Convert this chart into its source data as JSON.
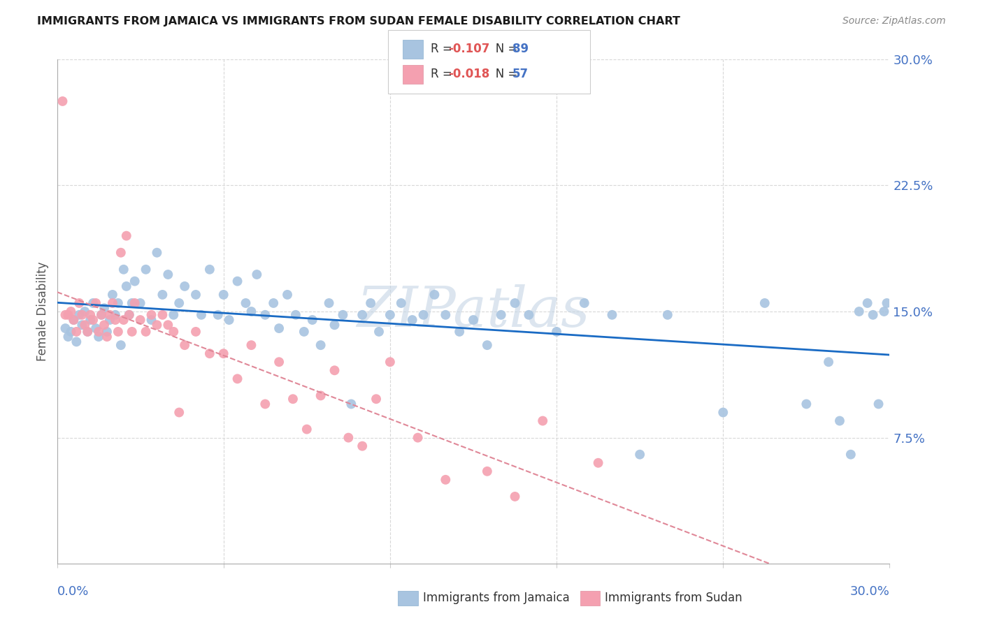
{
  "title": "IMMIGRANTS FROM JAMAICA VS IMMIGRANTS FROM SUDAN FEMALE DISABILITY CORRELATION CHART",
  "source": "Source: ZipAtlas.com",
  "ylabel": "Female Disability",
  "xlim": [
    0.0,
    0.3
  ],
  "ylim": [
    0.0,
    0.3
  ],
  "jamaica_color": "#a8c4e0",
  "sudan_color": "#f4a0b0",
  "jamaica_line_color": "#1a6bc4",
  "sudan_line_color": "#e08898",
  "legend_r_jamaica": "-0.107",
  "legend_n_jamaica": "89",
  "legend_r_sudan": "-0.018",
  "legend_n_sudan": "57",
  "jamaica_x": [
    0.003,
    0.004,
    0.005,
    0.006,
    0.007,
    0.008,
    0.009,
    0.01,
    0.011,
    0.012,
    0.013,
    0.014,
    0.015,
    0.016,
    0.017,
    0.018,
    0.019,
    0.02,
    0.021,
    0.022,
    0.023,
    0.024,
    0.025,
    0.026,
    0.027,
    0.028,
    0.03,
    0.032,
    0.034,
    0.036,
    0.038,
    0.04,
    0.042,
    0.044,
    0.046,
    0.05,
    0.052,
    0.055,
    0.058,
    0.06,
    0.062,
    0.065,
    0.068,
    0.07,
    0.072,
    0.075,
    0.078,
    0.08,
    0.083,
    0.086,
    0.089,
    0.092,
    0.095,
    0.098,
    0.1,
    0.103,
    0.106,
    0.11,
    0.113,
    0.116,
    0.12,
    0.124,
    0.128,
    0.132,
    0.136,
    0.14,
    0.145,
    0.15,
    0.155,
    0.16,
    0.165,
    0.17,
    0.18,
    0.19,
    0.2,
    0.21,
    0.22,
    0.24,
    0.255,
    0.27,
    0.278,
    0.282,
    0.286,
    0.289,
    0.292,
    0.294,
    0.296,
    0.298,
    0.299
  ],
  "jamaica_y": [
    0.14,
    0.135,
    0.138,
    0.145,
    0.132,
    0.148,
    0.142,
    0.15,
    0.138,
    0.145,
    0.155,
    0.14,
    0.135,
    0.148,
    0.152,
    0.138,
    0.145,
    0.16,
    0.148,
    0.155,
    0.13,
    0.175,
    0.165,
    0.148,
    0.155,
    0.168,
    0.155,
    0.175,
    0.145,
    0.185,
    0.16,
    0.172,
    0.148,
    0.155,
    0.165,
    0.16,
    0.148,
    0.175,
    0.148,
    0.16,
    0.145,
    0.168,
    0.155,
    0.15,
    0.172,
    0.148,
    0.155,
    0.14,
    0.16,
    0.148,
    0.138,
    0.145,
    0.13,
    0.155,
    0.142,
    0.148,
    0.095,
    0.148,
    0.155,
    0.138,
    0.148,
    0.155,
    0.145,
    0.148,
    0.16,
    0.148,
    0.138,
    0.145,
    0.13,
    0.148,
    0.155,
    0.148,
    0.138,
    0.155,
    0.148,
    0.065,
    0.148,
    0.09,
    0.155,
    0.095,
    0.12,
    0.085,
    0.065,
    0.15,
    0.155,
    0.148,
    0.095,
    0.15,
    0.155
  ],
  "sudan_x": [
    0.002,
    0.003,
    0.004,
    0.005,
    0.006,
    0.007,
    0.008,
    0.009,
    0.01,
    0.011,
    0.012,
    0.013,
    0.014,
    0.015,
    0.016,
    0.017,
    0.018,
    0.019,
    0.02,
    0.021,
    0.022,
    0.023,
    0.024,
    0.025,
    0.026,
    0.027,
    0.028,
    0.03,
    0.032,
    0.034,
    0.036,
    0.038,
    0.04,
    0.042,
    0.044,
    0.046,
    0.05,
    0.055,
    0.06,
    0.065,
    0.07,
    0.075,
    0.08,
    0.085,
    0.09,
    0.095,
    0.1,
    0.105,
    0.11,
    0.115,
    0.12,
    0.13,
    0.14,
    0.155,
    0.165,
    0.175,
    0.195
  ],
  "sudan_y": [
    0.275,
    0.148,
    0.148,
    0.15,
    0.145,
    0.138,
    0.155,
    0.148,
    0.142,
    0.138,
    0.148,
    0.145,
    0.155,
    0.138,
    0.148,
    0.142,
    0.135,
    0.148,
    0.155,
    0.145,
    0.138,
    0.185,
    0.145,
    0.195,
    0.148,
    0.138,
    0.155,
    0.145,
    0.138,
    0.148,
    0.142,
    0.148,
    0.142,
    0.138,
    0.09,
    0.13,
    0.138,
    0.125,
    0.125,
    0.11,
    0.13,
    0.095,
    0.12,
    0.098,
    0.08,
    0.1,
    0.115,
    0.075,
    0.07,
    0.098,
    0.12,
    0.075,
    0.05,
    0.055,
    0.04,
    0.085,
    0.06
  ],
  "background_color": "#ffffff",
  "grid_color": "#d8d8d8",
  "watermark_text": "ZIPatlas",
  "watermark_color": "#c5d5e5"
}
